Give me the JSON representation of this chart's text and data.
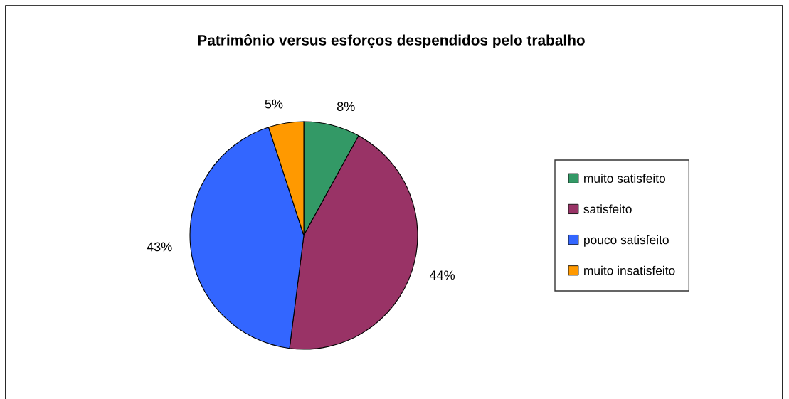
{
  "chart_data": {
    "type": "pie",
    "title": "Patrimônio versus esforços despendidos pelo trabalho",
    "categories": [
      "muito satisfeito",
      "satisfeito",
      "pouco satisfeito",
      "muito insatisfeito"
    ],
    "values": [
      8,
      44,
      43,
      5
    ],
    "colors": [
      "#339966",
      "#993366",
      "#3366ff",
      "#ff9900"
    ],
    "value_labels": [
      "8%",
      "44%",
      "43%",
      "5%"
    ],
    "legend": "right"
  }
}
